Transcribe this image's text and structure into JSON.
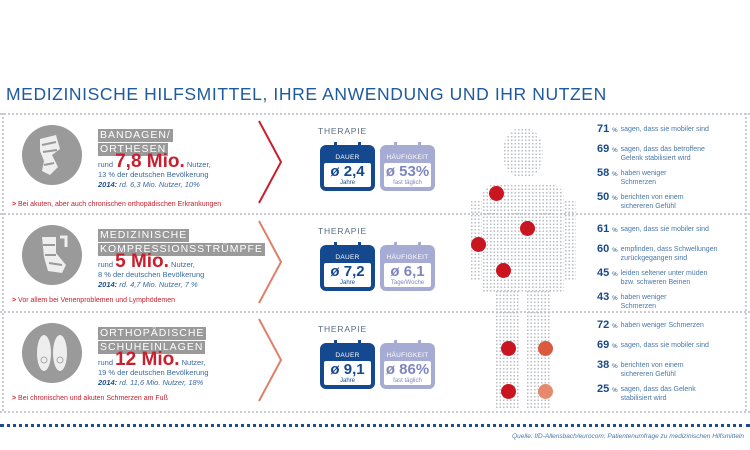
{
  "title": "MEDIZINISCHE HILFSMITTEL, IHRE ANWENDUNG UND IHR NUTZEN",
  "rows": [
    {
      "icon": "knee-brace-icon",
      "category": [
        "BANDAGEN/",
        "ORTHESEN"
      ],
      "rund": "rund",
      "users": "7,8 Mio.",
      "users_suffix": "Nutzer,",
      "share": "13 % der deutschen Bevölkerung",
      "y2014_label": "2014:",
      "y2014": "rd. 6,3 Mio. Nutzer, 10%",
      "note": "Bei akuten, aber auch chronischen orthopädischen Erkrankungen",
      "therapy": "THERAPIE",
      "dauer": {
        "label": "DAUER",
        "value": "ø 2,4",
        "unit": "Jahre"
      },
      "haeufigkeit": {
        "label": "HÄUFIGKEIT",
        "value": "ø 53%",
        "unit": "fast täglich"
      },
      "results": [
        {
          "pct": "71",
          "text": [
            "sagen, dass sie mobiler sind"
          ]
        },
        {
          "pct": "69",
          "text": [
            "sagen, dass das betroffene",
            "Gelenk stabilisiert wird"
          ]
        },
        {
          "pct": "58",
          "text": [
            "haben weniger",
            "Schmerzen"
          ]
        },
        {
          "pct": "50",
          "text": [
            "berichten von einem",
            "sichereren Gefühl"
          ]
        }
      ]
    },
    {
      "icon": "compression-stocking-icon",
      "category": [
        "MEDIZINISCHE",
        "KOMPRESSIONSSTRÜMPFE"
      ],
      "rund": "rund",
      "users": "5 Mio.",
      "users_suffix": "Nutzer,",
      "share": "8 % der deutschen Bevölkerung",
      "y2014_label": "2014:",
      "y2014": "rd. 4,7 Mio. Nutzer, 7 %",
      "note": "Vor allem bei Venenproblemen und Lymphödemen",
      "therapy": "THERAPIE",
      "dauer": {
        "label": "DAUER",
        "value": "ø 7,2",
        "unit": "Jahre"
      },
      "haeufigkeit": {
        "label": "HÄUFIGKEIT",
        "value": "ø 6,1",
        "unit": "Tage/Woche"
      },
      "results": [
        {
          "pct": "61",
          "text": [
            "sagen, dass sie mobiler sind"
          ]
        },
        {
          "pct": "60",
          "text": [
            "empfinden, dass Schwellungen",
            "zurückgegangen sind"
          ]
        },
        {
          "pct": "45",
          "text": [
            "leiden seltener unter müden",
            "bzw. schweren Beinen"
          ]
        },
        {
          "pct": "43",
          "text": [
            "haben weniger",
            "Schmerzen"
          ]
        }
      ]
    },
    {
      "icon": "shoe-insoles-icon",
      "category": [
        "ORTHOPÄDISCHE",
        "SCHUHEINLAGEN"
      ],
      "rund": "rund",
      "users": "12 Mio.",
      "users_suffix": "Nutzer,",
      "share": "19 % der deutschen Bevölkerung",
      "y2014_label": "2014:",
      "y2014": "rd. 11,6 Mio. Nutzer, 18%",
      "note": "Bei chronischen und akuten Schmerzen am Fuß",
      "therapy": "THERAPIE",
      "dauer": {
        "label": "DAUER",
        "value": "ø 9,1",
        "unit": "Jahre"
      },
      "haeufigkeit": {
        "label": "HÄUFIGKEIT",
        "value": "ø 86%",
        "unit": "fast täglich"
      },
      "results": [
        {
          "pct": "72",
          "text": [
            "haben weniger Schmerzen"
          ]
        },
        {
          "pct": "69",
          "text": [
            "sagen, dass sie mobiler sind"
          ]
        },
        {
          "pct": "38",
          "text": [
            "berichten von einem",
            "sichereren Gefühl"
          ]
        },
        {
          "pct": "25",
          "text": [
            "sagen, dass das Gelenk",
            "stabilisiert wird"
          ]
        }
      ]
    }
  ],
  "pct_sign": "%",
  "note_marker": ">",
  "source": "Quelle: IfD-Allensbach/eurocom: Patientenumfrage zu medizinischen Hilfsmitteln",
  "colors": {
    "accent_red": "#c8202f",
    "blue": "#15498f",
    "light_blue": "#a5abd3",
    "grey": "#9a9a9a"
  }
}
